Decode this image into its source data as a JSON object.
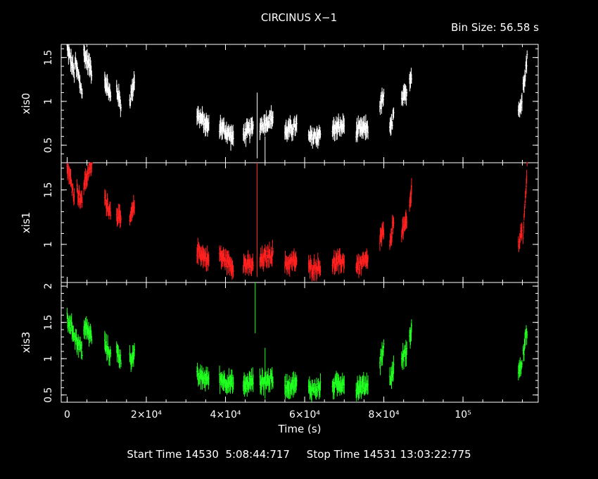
{
  "header": {
    "title": "CIRCINUS X−1",
    "bin_size": "Bin Size: 56.58 s"
  },
  "footer": {
    "text": "Start Time 14530  5:08:44:717     Stop Time 14531 13:03:22:775"
  },
  "chart_data": {
    "type": "scatter",
    "title": "CIRCINUS X−1",
    "xlabel": "Time (s)",
    "xlim": [
      -1500,
      119000
    ],
    "x_ticks": [
      {
        "value": 0,
        "label": "0"
      },
      {
        "value": 20000,
        "label": "2×10⁴"
      },
      {
        "value": 40000,
        "label": "4×10⁴"
      },
      {
        "value": 60000,
        "label": "6×10⁴"
      },
      {
        "value": 80000,
        "label": "8×10⁴"
      },
      {
        "value": 100000,
        "label": "10⁵"
      }
    ],
    "panels": [
      {
        "name": "xis0",
        "ylabel": "xis0",
        "color": "#ffffff",
        "ylim": [
          0.3,
          1.65
        ],
        "y_ticks": [
          {
            "value": 0.5,
            "label": "0.5"
          },
          {
            "value": 1,
            "label": "1"
          },
          {
            "value": 1.5,
            "label": "1.5"
          }
        ],
        "segments": [
          {
            "x": [
              0,
              1800
            ],
            "y": [
              1.62,
              1.32
            ]
          },
          {
            "x": [
              2000,
              3800
            ],
            "y": [
              1.45,
              1.1
            ]
          },
          {
            "x": [
              4200,
              6200
            ],
            "y": [
              1.55,
              1.35
            ]
          },
          {
            "x": [
              9500,
              11000
            ],
            "y": [
              1.25,
              1.05
            ]
          },
          {
            "x": [
              12500,
              13600
            ],
            "y": [
              1.15,
              0.95
            ]
          },
          {
            "x": [
              15800,
              17000
            ],
            "y": [
              1.0,
              1.25
            ]
          },
          {
            "x": [
              32800,
              35800
            ],
            "y": [
              0.85,
              0.7
            ]
          },
          {
            "x": [
              38500,
              42000
            ],
            "y": [
              0.72,
              0.58
            ]
          },
          {
            "x": [
              44500,
              47000
            ],
            "y": [
              0.62,
              0.7
            ]
          },
          {
            "x": [
              48700,
              52000
            ],
            "y": [
              0.72,
              0.82
            ]
          },
          {
            "x": [
              55000,
              58000
            ],
            "y": [
              0.65,
              0.72
            ]
          },
          {
            "x": [
              61000,
              64000
            ],
            "y": [
              0.58,
              0.62
            ]
          },
          {
            "x": [
              67000,
              70000
            ],
            "y": [
              0.68,
              0.72
            ]
          },
          {
            "x": [
              73000,
              76000
            ],
            "y": [
              0.66,
              0.7
            ]
          },
          {
            "x": [
              79000,
              80000
            ],
            "y": [
              0.95,
              1.05
            ]
          },
          {
            "x": [
              81500,
              82500
            ],
            "y": [
              0.65,
              0.85
            ]
          },
          {
            "x": [
              84500,
              85800
            ],
            "y": [
              1.0,
              1.1
            ]
          },
          {
            "x": [
              86500,
              87000
            ],
            "y": [
              1.25,
              1.32
            ]
          },
          {
            "x": [
              114000,
              114900
            ],
            "y": [
              0.9,
              0.98
            ]
          },
          {
            "x": [
              115200,
              116200
            ],
            "y": [
              1.2,
              1.48
            ]
          }
        ],
        "spikes": [
          {
            "x": 48000,
            "y": [
              0.35,
              1.1
            ]
          },
          {
            "x": 50000,
            "y": [
              0.28,
              0.6
            ]
          }
        ]
      },
      {
        "name": "xis1",
        "ylabel": "xis1",
        "color": "#ff2020",
        "ylim": [
          0.65,
          1.75
        ],
        "y_ticks": [
          {
            "value": 1,
            "label": "1"
          },
          {
            "value": 1.5,
            "label": "1.5"
          }
        ],
        "segments": [
          {
            "x": [
              0,
              1800
            ],
            "y": [
              1.72,
              1.45
            ]
          },
          {
            "x": [
              2500,
              3800
            ],
            "y": [
              1.5,
              1.38
            ]
          },
          {
            "x": [
              4200,
              6300
            ],
            "y": [
              1.55,
              1.75
            ]
          },
          {
            "x": [
              9500,
              11000
            ],
            "y": [
              1.42,
              1.3
            ]
          },
          {
            "x": [
              12500,
              13600
            ],
            "y": [
              1.3,
              1.2
            ]
          },
          {
            "x": [
              15800,
              17000
            ],
            "y": [
              1.22,
              1.35
            ]
          },
          {
            "x": [
              32800,
              35800
            ],
            "y": [
              0.95,
              0.85
            ]
          },
          {
            "x": [
              38500,
              42000
            ],
            "y": [
              0.9,
              0.8
            ]
          },
          {
            "x": [
              44500,
              47000
            ],
            "y": [
              0.82,
              0.8
            ]
          },
          {
            "x": [
              48700,
              52000
            ],
            "y": [
              0.85,
              0.92
            ]
          },
          {
            "x": [
              55000,
              58000
            ],
            "y": [
              0.82,
              0.85
            ]
          },
          {
            "x": [
              61000,
              64000
            ],
            "y": [
              0.78,
              0.8
            ]
          },
          {
            "x": [
              67000,
              70000
            ],
            "y": [
              0.82,
              0.85
            ]
          },
          {
            "x": [
              73000,
              76000
            ],
            "y": [
              0.8,
              0.85
            ]
          },
          {
            "x": [
              79000,
              80000
            ],
            "y": [
              1.05,
              1.12
            ]
          },
          {
            "x": [
              81500,
              82500
            ],
            "y": [
              0.95,
              1.25
            ]
          },
          {
            "x": [
              84500,
              85800
            ],
            "y": [
              1.12,
              1.2
            ]
          },
          {
            "x": [
              86500,
              87000
            ],
            "y": [
              1.35,
              1.5
            ]
          },
          {
            "x": [
              114000,
              114900
            ],
            "y": [
              1.0,
              1.15
            ]
          },
          {
            "x": [
              115200,
              116200
            ],
            "y": [
              1.05,
              1.72
            ]
          }
        ],
        "spikes": [
          {
            "x": 48000,
            "y": [
              0.7,
              1.75
            ]
          }
        ]
      },
      {
        "name": "xis3",
        "ylabel": "xis3",
        "color": "#20ff20",
        "ylim": [
          0.4,
          2.05
        ],
        "y_ticks": [
          {
            "value": 0.5,
            "label": "0.5"
          },
          {
            "value": 1,
            "label": "1"
          },
          {
            "value": 1.5,
            "label": "1.5"
          },
          {
            "value": 2,
            "label": "2"
          }
        ],
        "segments": [
          {
            "x": [
              0,
              1800
            ],
            "y": [
              1.55,
              1.35
            ]
          },
          {
            "x": [
              2000,
              3800
            ],
            "y": [
              1.3,
              1.1
            ]
          },
          {
            "x": [
              4200,
              6200
            ],
            "y": [
              1.45,
              1.3
            ]
          },
          {
            "x": [
              9500,
              11000
            ],
            "y": [
              1.2,
              1.05
            ]
          },
          {
            "x": [
              12500,
              13600
            ],
            "y": [
              1.1,
              1.0
            ]
          },
          {
            "x": [
              15800,
              17000
            ],
            "y": [
              1.0,
              1.05
            ]
          },
          {
            "x": [
              32800,
              35800
            ],
            "y": [
              0.75,
              0.72
            ]
          },
          {
            "x": [
              38500,
              42000
            ],
            "y": [
              0.72,
              0.65
            ]
          },
          {
            "x": [
              44500,
              47000
            ],
            "y": [
              0.62,
              0.7
            ]
          },
          {
            "x": [
              48700,
              52000
            ],
            "y": [
              0.68,
              0.72
            ]
          },
          {
            "x": [
              55000,
              58000
            ],
            "y": [
              0.62,
              0.65
            ]
          },
          {
            "x": [
              61000,
              64000
            ],
            "y": [
              0.58,
              0.6
            ]
          },
          {
            "x": [
              67000,
              70000
            ],
            "y": [
              0.62,
              0.68
            ]
          },
          {
            "x": [
              73000,
              76000
            ],
            "y": [
              0.58,
              0.65
            ]
          },
          {
            "x": [
              79000,
              80000
            ],
            "y": [
              0.95,
              1.15
            ]
          },
          {
            "x": [
              81500,
              82500
            ],
            "y": [
              0.7,
              0.85
            ]
          },
          {
            "x": [
              84500,
              85800
            ],
            "y": [
              1.0,
              1.1
            ]
          },
          {
            "x": [
              86500,
              87000
            ],
            "y": [
              1.25,
              1.45
            ]
          },
          {
            "x": [
              114000,
              114900
            ],
            "y": [
              0.8,
              0.95
            ]
          },
          {
            "x": [
              115200,
              116200
            ],
            "y": [
              1.05,
              1.4
            ]
          }
        ],
        "spikes": [
          {
            "x": 47500,
            "y": [
              1.35,
              2.05
            ]
          },
          {
            "x": 50000,
            "y": [
              0.45,
              1.15
            ]
          }
        ]
      }
    ]
  }
}
